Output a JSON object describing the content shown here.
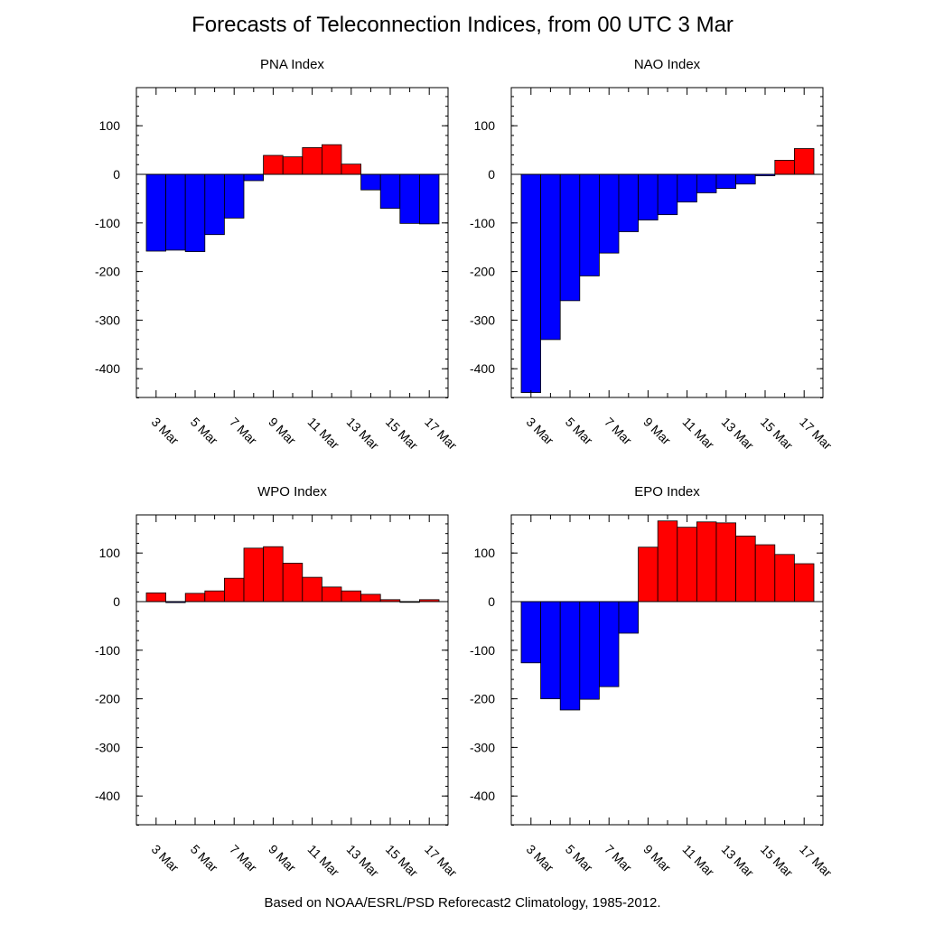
{
  "title": "Forecasts of Teleconnection Indices, from 00 UTC 3 Mar",
  "footer": "Based on NOAA/ESRL/PSD Reforecast2 Climatology, 1985-2012.",
  "colors": {
    "positive": "#ff0000",
    "negative": "#0000ff",
    "axis": "#000000",
    "background": "#ffffff"
  },
  "chart_data": [
    {
      "type": "bar",
      "title": "PNA Index",
      "categories": [
        "3 Mar",
        "4 Mar",
        "5 Mar",
        "6 Mar",
        "7 Mar",
        "8 Mar",
        "9 Mar",
        "10 Mar",
        "11 Mar",
        "12 Mar",
        "13 Mar",
        "14 Mar",
        "15 Mar",
        "16 Mar",
        "17 Mar"
      ],
      "tick_labels": [
        "3 Mar",
        "5 Mar",
        "7 Mar",
        "9 Mar",
        "11 Mar",
        "13 Mar",
        "15 Mar",
        "17 Mar"
      ],
      "values": [
        -158,
        -156,
        -159,
        -124,
        -90,
        -13,
        39,
        36,
        55,
        61,
        21,
        -32,
        -70,
        -101,
        -102
      ],
      "ylim": [
        -460,
        180
      ],
      "yticks": [
        100,
        0,
        -100,
        -200,
        -300,
        -400
      ]
    },
    {
      "type": "bar",
      "title": "NAO Index",
      "categories": [
        "3 Mar",
        "4 Mar",
        "5 Mar",
        "6 Mar",
        "7 Mar",
        "8 Mar",
        "9 Mar",
        "10 Mar",
        "11 Mar",
        "12 Mar",
        "13 Mar",
        "14 Mar",
        "15 Mar",
        "16 Mar",
        "17 Mar"
      ],
      "tick_labels": [
        "3 Mar",
        "5 Mar",
        "7 Mar",
        "9 Mar",
        "11 Mar",
        "13 Mar",
        "15 Mar",
        "17 Mar"
      ],
      "values": [
        -449,
        -340,
        -260,
        -209,
        -162,
        -118,
        -94,
        -83,
        -57,
        -38,
        -29,
        -20,
        -3,
        29,
        53
      ],
      "ylim": [
        -460,
        180
      ],
      "yticks": [
        100,
        0,
        -100,
        -200,
        -300,
        -400
      ]
    },
    {
      "type": "bar",
      "title": "WPO Index",
      "categories": [
        "3 Mar",
        "4 Mar",
        "5 Mar",
        "6 Mar",
        "7 Mar",
        "8 Mar",
        "9 Mar",
        "10 Mar",
        "11 Mar",
        "12 Mar",
        "13 Mar",
        "14 Mar",
        "15 Mar",
        "16 Mar",
        "17 Mar"
      ],
      "tick_labels": [
        "3 Mar",
        "5 Mar",
        "7 Mar",
        "9 Mar",
        "11 Mar",
        "13 Mar",
        "15 Mar",
        "17 Mar"
      ],
      "values": [
        18,
        -2,
        17,
        22,
        48,
        110,
        113,
        79,
        50,
        30,
        22,
        15,
        4,
        0,
        4
      ],
      "ylim": [
        -460,
        180
      ],
      "yticks": [
        100,
        0,
        -100,
        -200,
        -300,
        -400
      ]
    },
    {
      "type": "bar",
      "title": "EPO Index",
      "categories": [
        "3 Mar",
        "4 Mar",
        "5 Mar",
        "6 Mar",
        "7 Mar",
        "8 Mar",
        "9 Mar",
        "10 Mar",
        "11 Mar",
        "12 Mar",
        "13 Mar",
        "14 Mar",
        "15 Mar",
        "16 Mar",
        "17 Mar"
      ],
      "tick_labels": [
        "3 Mar",
        "5 Mar",
        "7 Mar",
        "9 Mar",
        "11 Mar",
        "13 Mar",
        "15 Mar",
        "17 Mar"
      ],
      "values": [
        -126,
        -200,
        -223,
        -201,
        -175,
        -65,
        112,
        166,
        153,
        164,
        162,
        135,
        117,
        97,
        78
      ],
      "ylim": [
        -460,
        180
      ],
      "yticks": [
        100,
        0,
        -100,
        -200,
        -300,
        -400
      ]
    }
  ]
}
